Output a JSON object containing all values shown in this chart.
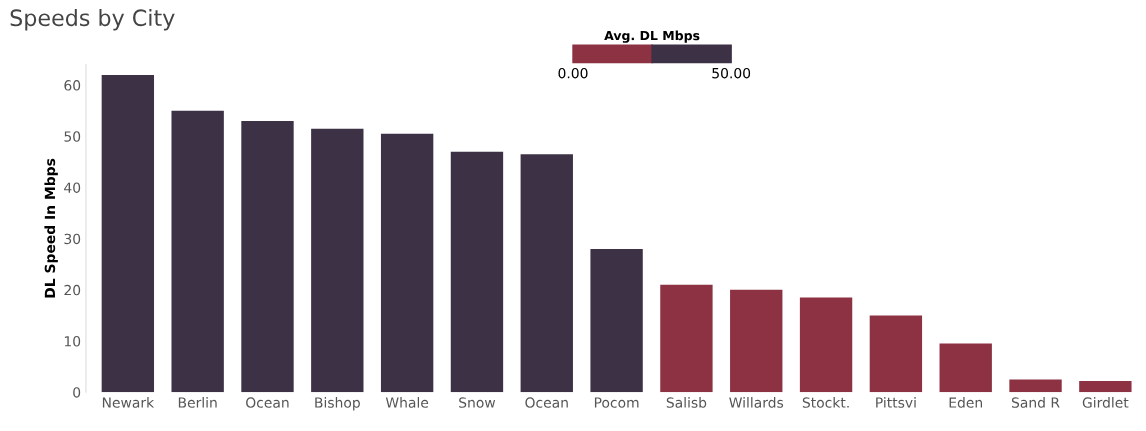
{
  "chart_data": {
    "type": "bar",
    "title": "Speeds by City",
    "ylabel": "DL Speed In Mbps",
    "categories": [
      "Newark",
      "Berlin",
      "Ocean",
      "Bishop",
      "Whale",
      "Snow",
      "Ocean",
      "Pocom",
      "Salisb",
      "Willards",
      "Stockt.",
      "Pittsvi",
      "Eden",
      "Sand R",
      "Girdlet"
    ],
    "values": [
      62,
      55,
      53,
      51.5,
      50.5,
      47,
      46.5,
      28,
      21,
      20,
      18.5,
      15,
      9.5,
      2.5,
      2.2
    ],
    "colors": [
      "#3d3146",
      "#3d3146",
      "#3d3146",
      "#3d3146",
      "#3d3146",
      "#3d3146",
      "#3d3146",
      "#3d3146",
      "#8c3242",
      "#8c3242",
      "#8c3242",
      "#8c3242",
      "#8c3242",
      "#8c3242",
      "#8c3242"
    ],
    "ylim": [
      0,
      64
    ],
    "yticks": [
      0,
      10,
      20,
      30,
      40,
      50,
      60
    ],
    "clabel": "Avg. DL Mbps",
    "annotations": [
      "0.00",
      "50.00"
    ],
    "grid": false,
    "legend": false
  }
}
